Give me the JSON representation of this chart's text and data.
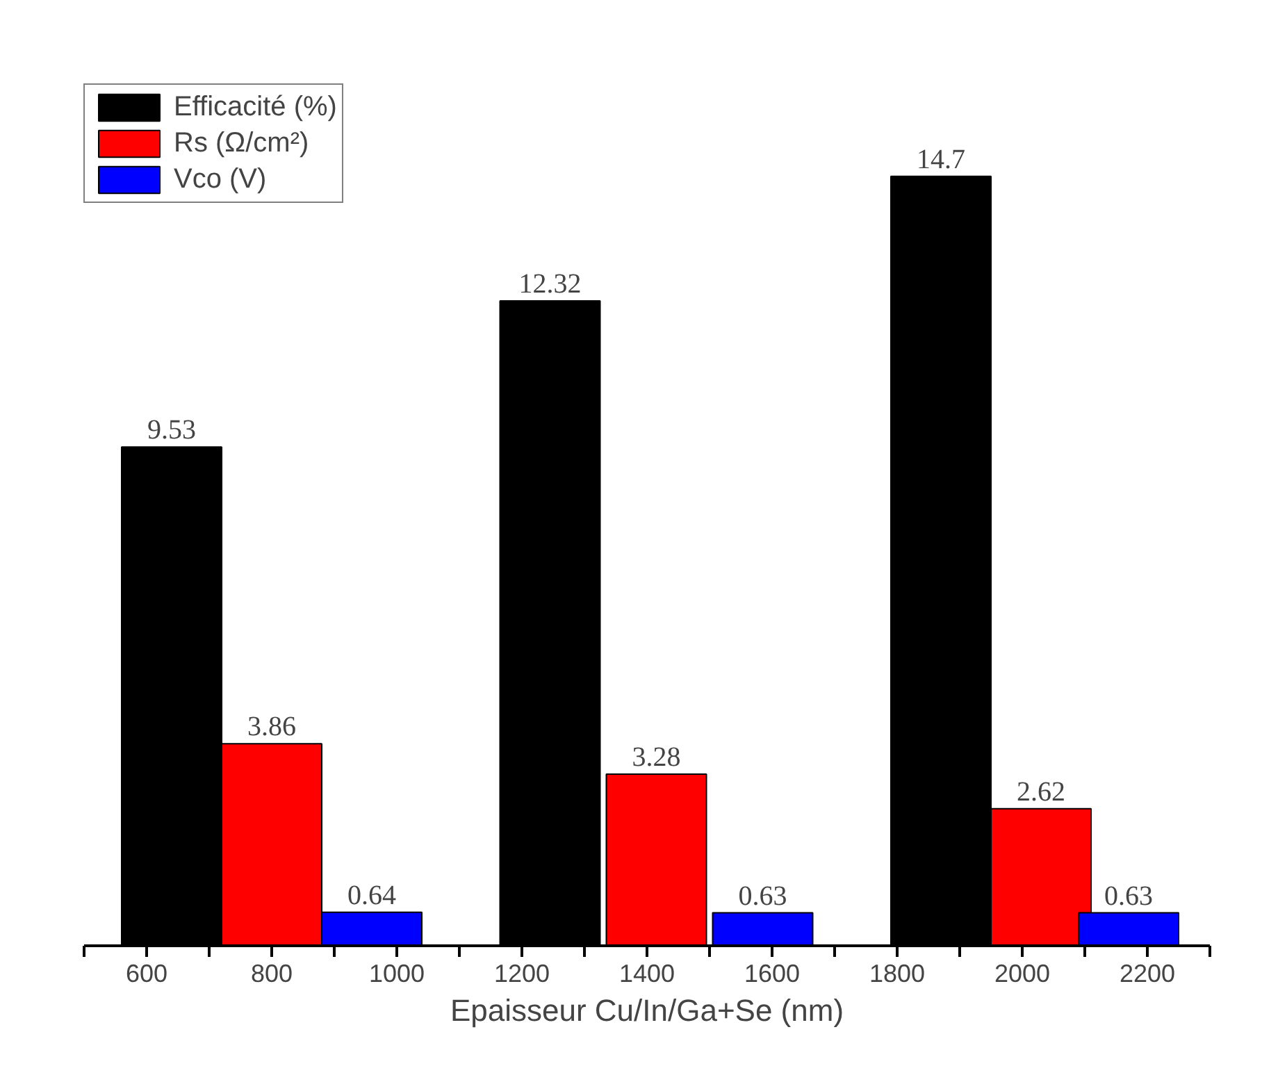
{
  "chart_data": {
    "type": "bar",
    "xlabel": "Epaisseur Cu/In/Ga+Se (nm)",
    "xlim": [
      500,
      2300
    ],
    "xticks": [
      {
        "value": 500,
        "label": null
      },
      600,
      {
        "value": 700,
        "label": null
      },
      800,
      {
        "value": 900,
        "label": null
      },
      1000,
      {
        "value": 1100,
        "label": null
      },
      1200,
      {
        "value": 1300,
        "label": null
      },
      1400,
      {
        "value": 1500,
        "label": null
      },
      1600,
      {
        "value": 1700,
        "label": null
      },
      1800,
      {
        "value": 1900,
        "label": null
      },
      2000,
      {
        "value": 2100,
        "label": null
      },
      2200,
      {
        "value": 2300,
        "label": null
      }
    ],
    "series": [
      {
        "name": "Efficacité (%)",
        "color": "#000000",
        "x": [
          640,
          1245,
          1870
        ],
        "values": [
          9.53,
          12.32,
          14.7
        ]
      },
      {
        "name": "Rs (Ω/cm²)",
        "color": "#ff0000",
        "x": [
          800,
          1415,
          2030
        ],
        "values": [
          3.86,
          3.28,
          2.62
        ]
      },
      {
        "name": "Vco (V)",
        "color": "#0000ff",
        "x": [
          960,
          1585,
          2170
        ],
        "values": [
          0.64,
          0.63,
          0.63
        ]
      }
    ],
    "data_labels": true,
    "legend": "top left",
    "grid": false,
    "tick_labels": "x"
  }
}
